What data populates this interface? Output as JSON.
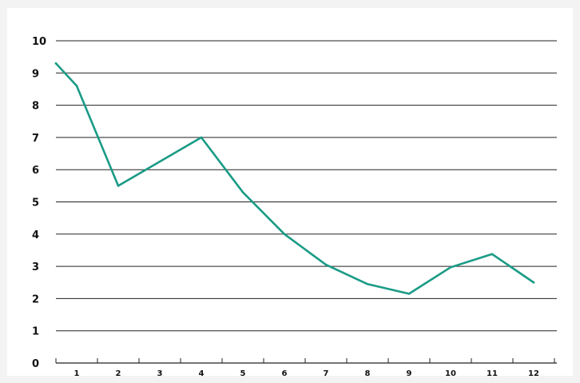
{
  "chart_data": {
    "type": "line",
    "title": "",
    "xlabel": "",
    "ylabel": "",
    "ylim": [
      0,
      10
    ],
    "yticks": [
      "0",
      "1",
      "2",
      "3",
      "4",
      "5",
      "6",
      "7",
      "8",
      "9",
      "10"
    ],
    "xticks": [
      "1",
      "2",
      "3",
      "4",
      "5",
      "6",
      "7",
      "8",
      "9",
      "10",
      "11",
      "12"
    ],
    "grid": true,
    "line_color": "#1a9b86",
    "grid_color": "#222222",
    "points": [
      {
        "x": 0.5,
        "y": 9.3
      },
      {
        "x": 1.0,
        "y": 8.6
      },
      {
        "x": 2.0,
        "y": 5.5
      },
      {
        "x": 4.0,
        "y": 7.0
      },
      {
        "x": 5.0,
        "y": 5.3
      },
      {
        "x": 6.0,
        "y": 4.0
      },
      {
        "x": 7.0,
        "y": 3.05
      },
      {
        "x": 8.0,
        "y": 2.45
      },
      {
        "x": 9.0,
        "y": 2.15
      },
      {
        "x": 10.0,
        "y": 2.97
      },
      {
        "x": 11.0,
        "y": 3.38
      },
      {
        "x": 12.0,
        "y": 2.5
      }
    ]
  }
}
